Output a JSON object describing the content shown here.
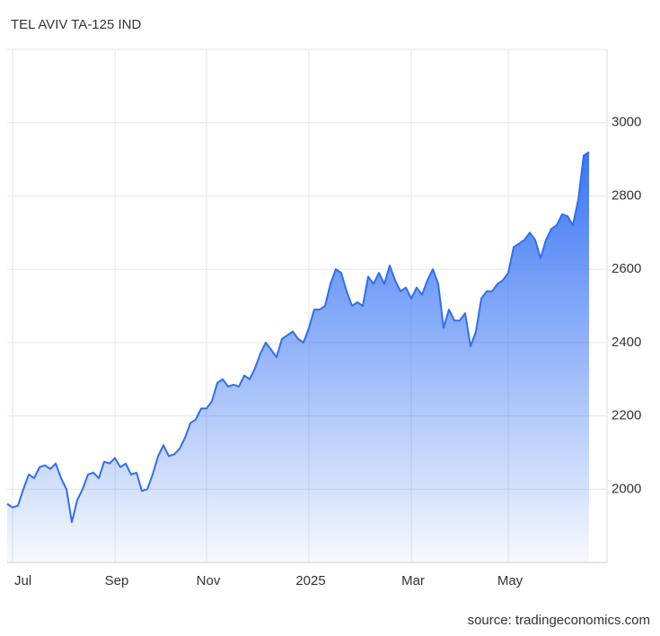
{
  "chart_data": {
    "type": "area",
    "title": "TEL AVIV TA-125 IND",
    "source": "source: tradingeconomics.com",
    "categories": [
      null,
      "Jul",
      null,
      null,
      null,
      null,
      null,
      null,
      null,
      null,
      null,
      null,
      null,
      null,
      null,
      null,
      null,
      null,
      null,
      null,
      "Sep",
      null,
      null,
      null,
      null,
      null,
      null,
      null,
      null,
      null,
      null,
      null,
      null,
      null,
      null,
      null,
      null,
      "Nov",
      null,
      null,
      null,
      null,
      null,
      null,
      null,
      null,
      null,
      null,
      null,
      null,
      null,
      null,
      null,
      null,
      null,
      null,
      "2025",
      null,
      null,
      null,
      null,
      null,
      null,
      null,
      null,
      null,
      null,
      null,
      null,
      null,
      null,
      null,
      null,
      null,
      null,
      "Mar",
      null,
      null,
      null,
      null,
      null,
      null,
      null,
      null,
      null,
      null,
      null,
      null,
      null,
      null,
      null,
      null,
      null,
      "May",
      null,
      null,
      null,
      null,
      null,
      null,
      null,
      null,
      null,
      null,
      null,
      null,
      null,
      null,
      null
    ],
    "values": [
      1960,
      1950,
      1955,
      2000,
      2040,
      2030,
      2060,
      2065,
      2055,
      2070,
      2030,
      2000,
      1910,
      1970,
      2000,
      2040,
      2045,
      2030,
      2075,
      2070,
      2085,
      2060,
      2070,
      2040,
      2045,
      1995,
      2000,
      2040,
      2090,
      2120,
      2090,
      2095,
      2110,
      2140,
      2180,
      2190,
      2220,
      2220,
      2240,
      2290,
      2300,
      2280,
      2285,
      2280,
      2310,
      2300,
      2330,
      2370,
      2400,
      2380,
      2360,
      2410,
      2420,
      2430,
      2410,
      2400,
      2440,
      2490,
      2490,
      2500,
      2560,
      2600,
      2590,
      2540,
      2500,
      2510,
      2500,
      2580,
      2560,
      2590,
      2560,
      2610,
      2570,
      2540,
      2550,
      2520,
      2550,
      2530,
      2570,
      2600,
      2560,
      2440,
      2490,
      2460,
      2460,
      2480,
      2390,
      2430,
      2520,
      2540,
      2540,
      2560,
      2570,
      2590,
      2660,
      2670,
      2680,
      2700,
      2680,
      2630,
      2680,
      2710,
      2720,
      2750,
      2745,
      2720,
      2790,
      2910,
      2920
    ],
    "color": "#2f6ef3",
    "ylim": [
      1800,
      3200
    ],
    "yticks": [
      2000,
      2200,
      2400,
      2600,
      2800,
      3000
    ],
    "grid": true
  }
}
